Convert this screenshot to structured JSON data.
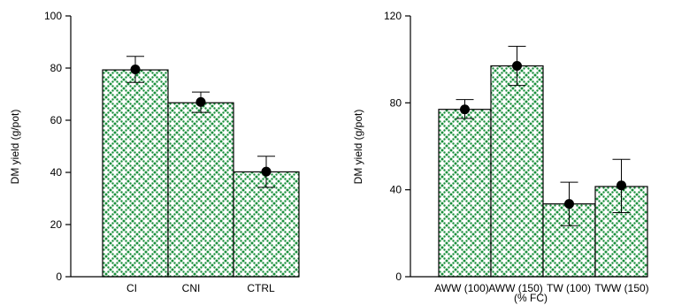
{
  "chart_data": [
    {
      "type": "bar",
      "categories": [
        "CI",
        "CNI",
        "CTRL"
      ],
      "values": [
        79.3,
        66.7,
        40.2
      ],
      "mean_marker": [
        79.5,
        67.0,
        40.3
      ],
      "error_bars": [
        [
          74.5,
          84.5
        ],
        [
          63.0,
          70.8
        ],
        [
          34.3,
          46.2
        ]
      ],
      "ylabel": "DM yield (g/pot)",
      "xlabel": "",
      "ylim": [
        0,
        100
      ],
      "yticks": [
        "0",
        "20",
        "40",
        "60",
        "80",
        "100"
      ],
      "grid": false,
      "bar_pattern": "green dotted crosshatch",
      "bar_color": "#1a8f3c"
    },
    {
      "type": "bar",
      "categories": [
        "AWW (100)",
        "AWW (150)",
        "TW (100)",
        "TWW (150)"
      ],
      "values": [
        77.0,
        97.0,
        33.5,
        41.5
      ],
      "mean_marker": [
        77.0,
        97.0,
        33.5,
        42.0
      ],
      "error_bars": [
        [
          72.8,
          81.5
        ],
        [
          88.0,
          106.0
        ],
        [
          23.5,
          43.5
        ],
        [
          29.5,
          54.0
        ]
      ],
      "ylabel": "DM yield (g/pot)",
      "xlabel": "(% FC)",
      "ylim": [
        0,
        120
      ],
      "yticks": [
        "0",
        "40",
        "80",
        "120"
      ],
      "grid": false,
      "bar_pattern": "green dotted crosshatch",
      "bar_color": "#1a8f3c"
    }
  ]
}
